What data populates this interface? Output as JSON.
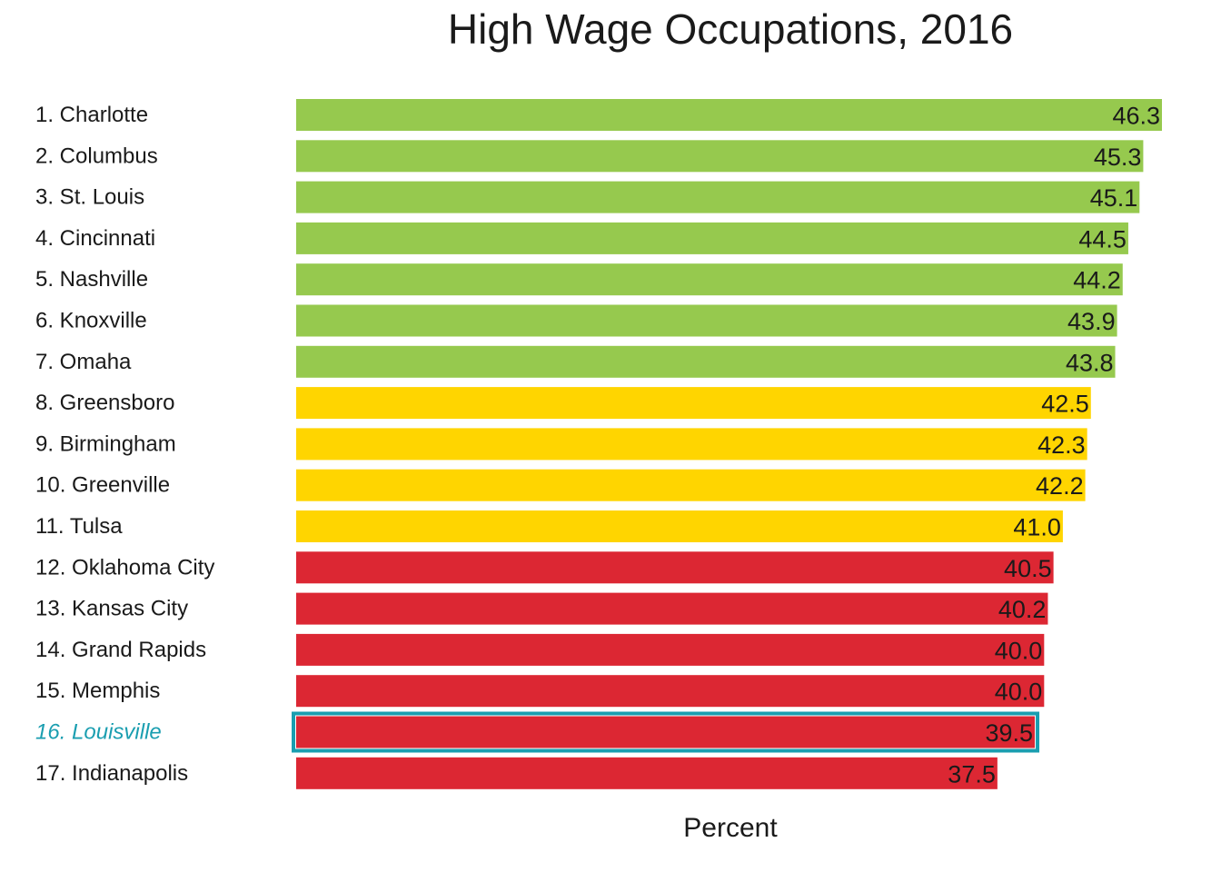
{
  "chart_data": {
    "type": "bar",
    "orientation": "horizontal",
    "title": "High Wage Occupations, 2016",
    "xlabel": "Percent",
    "ylabel": "",
    "categories": [
      "1. Charlotte",
      "2. Columbus",
      "3. St. Louis",
      "4. Cincinnati",
      "5. Nashville",
      "6. Knoxville",
      "7. Omaha",
      "8. Greensboro",
      "9. Birmingham",
      "10. Greenville",
      "11. Tulsa",
      "12. Oklahoma City",
      "13. Kansas City",
      "14. Grand Rapids",
      "15. Memphis",
      "16. Louisville",
      "17. Indianapolis"
    ],
    "values": [
      46.3,
      45.3,
      45.1,
      44.5,
      44.2,
      43.9,
      43.8,
      42.5,
      42.3,
      42.2,
      41.0,
      40.5,
      40.2,
      40.0,
      40.0,
      39.5,
      37.5
    ],
    "value_labels": [
      "46.3",
      "45.3",
      "45.1",
      "44.5",
      "44.2",
      "43.9",
      "43.8",
      "42.5",
      "42.3",
      "42.2",
      "41.0",
      "40.5",
      "40.2",
      "40.0",
      "40.0",
      "39.5",
      "37.5"
    ],
    "bar_colors": [
      "#96c94e",
      "#96c94e",
      "#96c94e",
      "#96c94e",
      "#96c94e",
      "#96c94e",
      "#96c94e",
      "#ffd500",
      "#ffd500",
      "#ffd500",
      "#ffd500",
      "#dc2733",
      "#dc2733",
      "#dc2733",
      "#dc2733",
      "#dc2733",
      "#dc2733"
    ],
    "highlight_index": 15,
    "highlight_color": "#1a9eb0",
    "xlim": [
      0,
      46.3
    ],
    "grid": false,
    "legend": "none"
  }
}
